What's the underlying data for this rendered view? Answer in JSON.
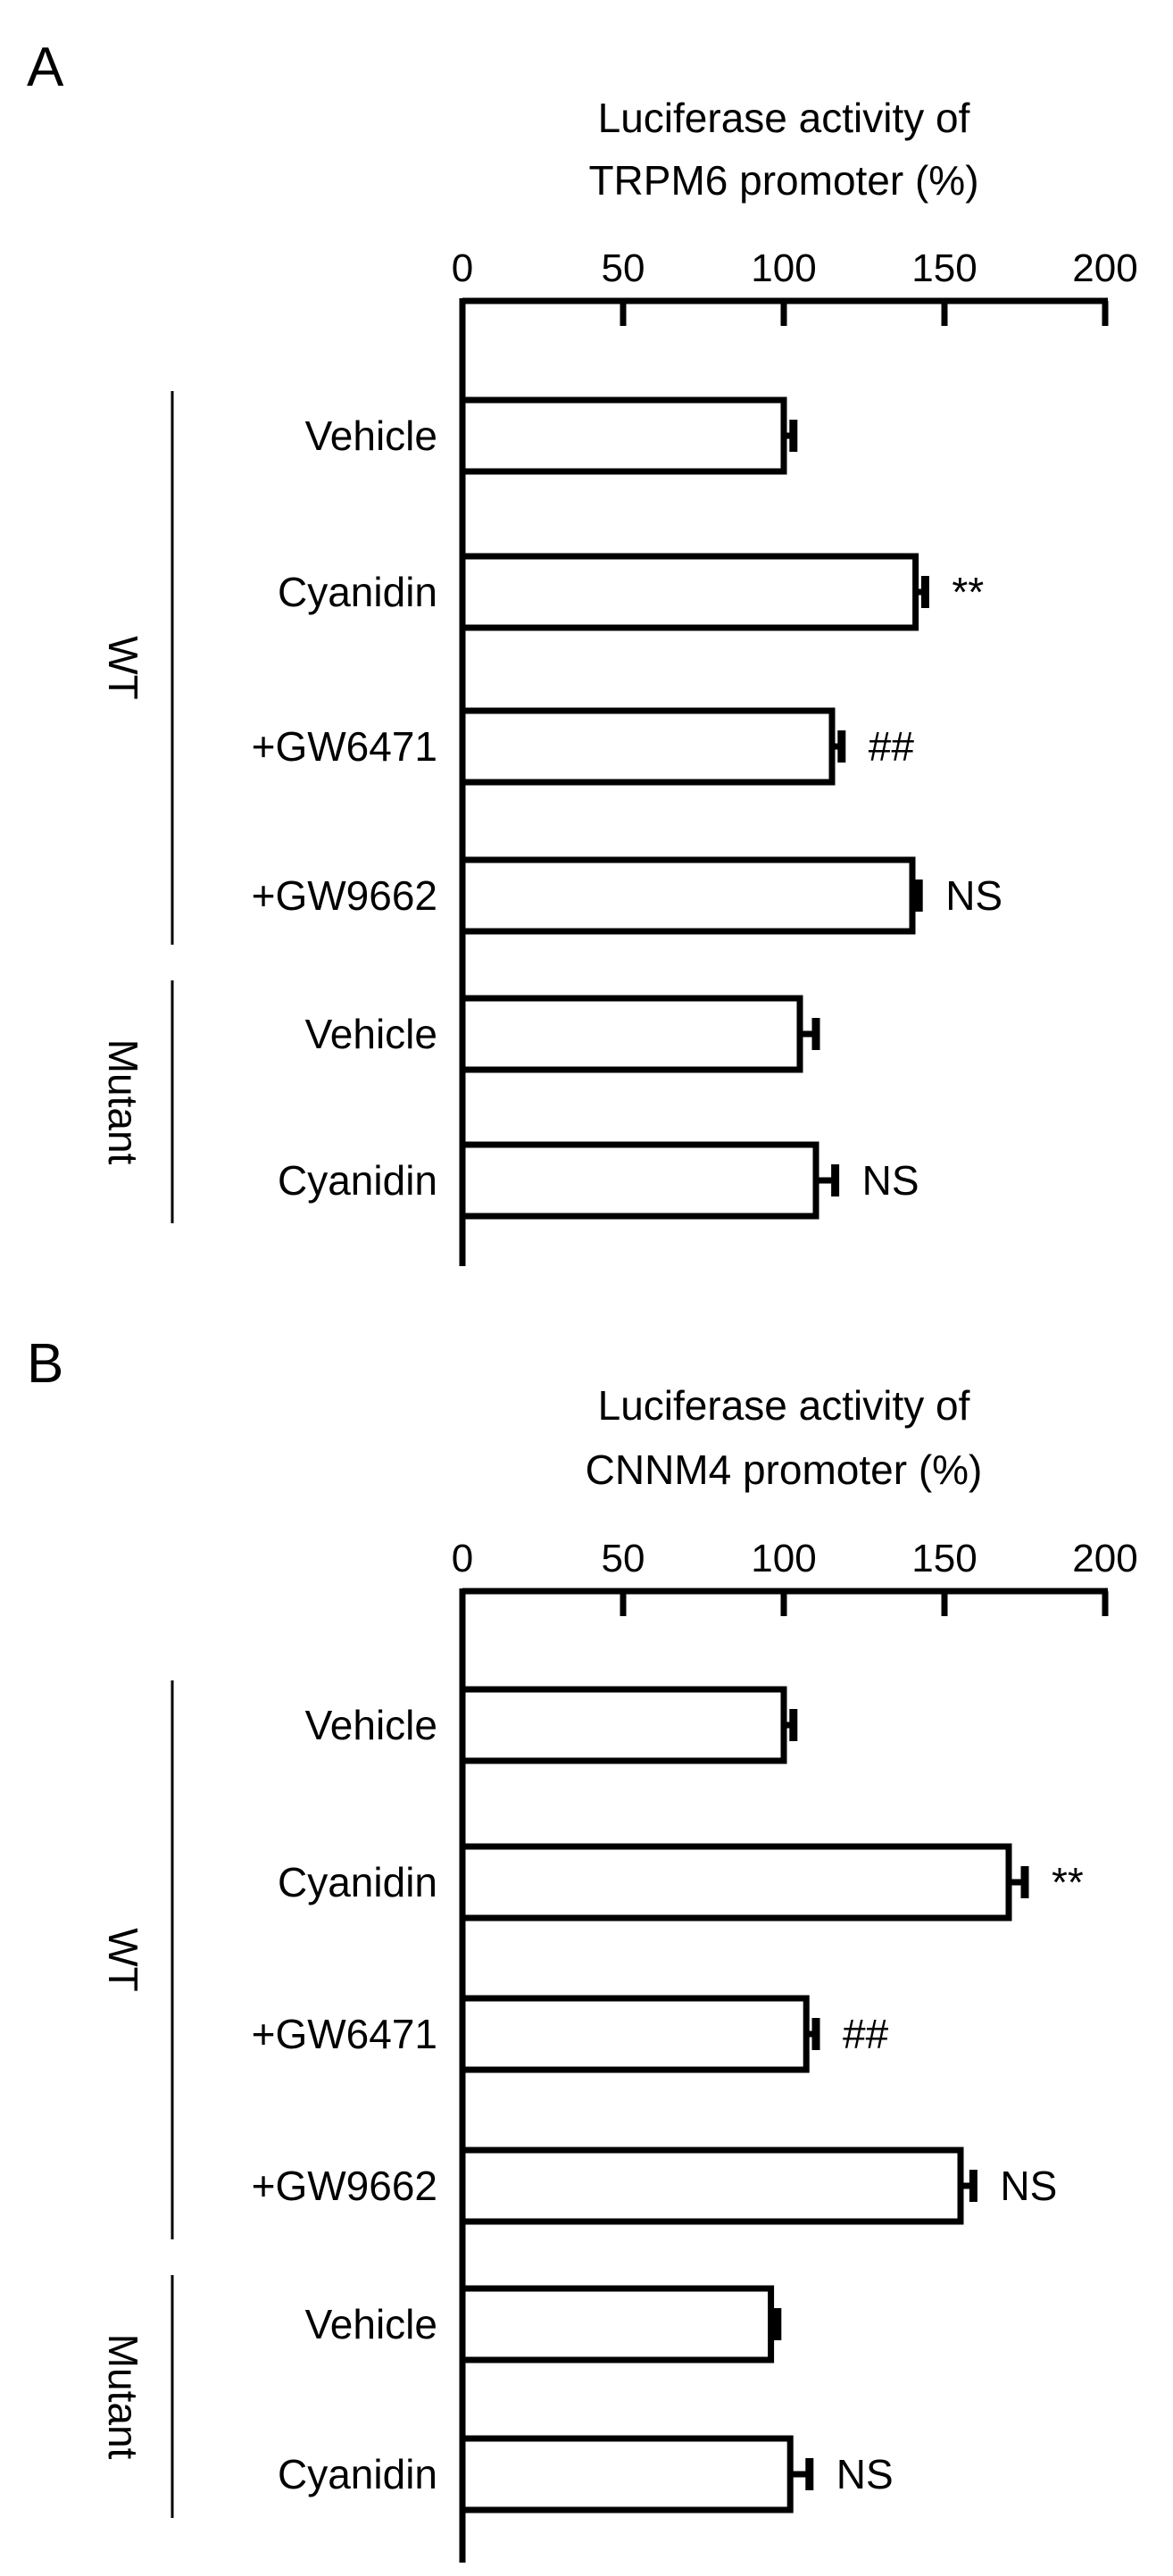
{
  "chart_data": [
    {
      "type": "bar",
      "orientation": "horizontal",
      "panel": "A",
      "title": [
        "Luciferase activity of",
        "TRPM6 promoter  (%)"
      ],
      "xlim": [
        0,
        200
      ],
      "xticks": [
        0,
        50,
        100,
        150,
        200
      ],
      "categories": [
        "Vehicle",
        "Cyanidin",
        "+GW6471",
        "+GW9662",
        "Vehicle",
        "Cyanidin"
      ],
      "values": [
        100,
        141,
        115,
        140,
        105,
        110
      ],
      "errors": [
        3,
        3,
        3,
        2,
        5,
        6
      ],
      "annotations": [
        "",
        "**",
        "##",
        "NS",
        "",
        "NS"
      ],
      "groups": [
        {
          "label": "WT",
          "members": [
            0,
            1,
            2,
            3
          ]
        },
        {
          "label": "Mutant",
          "members": [
            4,
            5
          ]
        }
      ]
    },
    {
      "type": "bar",
      "orientation": "horizontal",
      "panel": "B",
      "title": [
        "Luciferase activity of",
        "CNNM4 promoter  (%)"
      ],
      "xlim": [
        0,
        200
      ],
      "xticks": [
        0,
        50,
        100,
        150,
        200
      ],
      "categories": [
        "Vehicle",
        "Cyanidin",
        "+GW6471",
        "+GW9662",
        "Vehicle",
        "Cyanidin"
      ],
      "values": [
        100,
        170,
        107,
        155,
        96,
        102
      ],
      "errors": [
        3,
        5,
        3,
        4,
        2,
        6
      ],
      "annotations": [
        "",
        "**",
        "##",
        "NS",
        "",
        "NS"
      ],
      "groups": [
        {
          "label": "WT",
          "members": [
            0,
            1,
            2,
            3
          ]
        },
        {
          "label": "Mutant",
          "members": [
            4,
            5
          ]
        }
      ]
    }
  ]
}
